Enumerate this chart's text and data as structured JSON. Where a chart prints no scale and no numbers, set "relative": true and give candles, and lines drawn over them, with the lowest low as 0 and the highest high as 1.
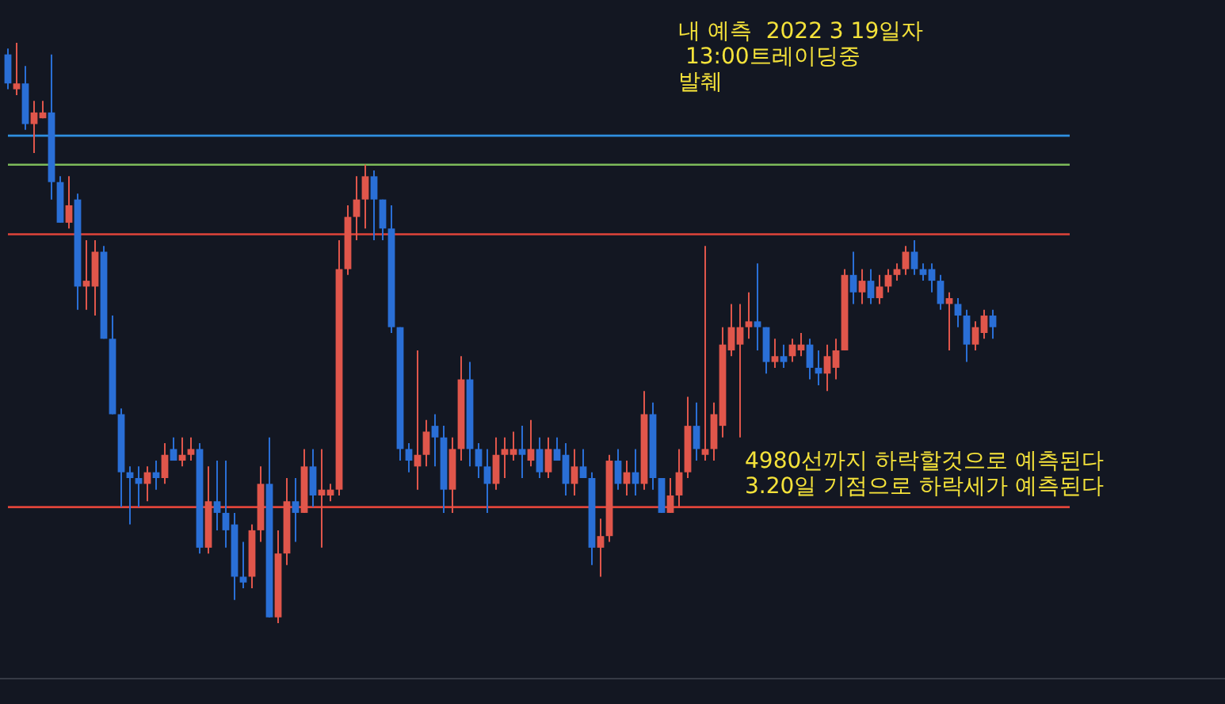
{
  "chart_data": {
    "type": "candlestick",
    "relative": true,
    "categories": [
      null,
      null,
      null,
      null,
      null,
      null,
      null,
      null,
      null,
      null,
      null,
      null,
      null,
      null,
      null,
      null,
      null,
      null,
      null,
      null,
      null,
      null,
      null,
      null,
      null,
      null,
      null,
      null,
      null,
      null,
      null,
      null,
      null,
      null,
      null,
      null,
      null,
      null,
      null,
      null,
      null,
      null,
      null,
      null,
      null,
      null,
      null,
      null,
      null,
      null,
      null,
      null,
      null,
      null,
      null,
      null,
      null,
      null,
      null,
      null,
      null,
      null,
      null,
      null,
      null,
      null,
      null,
      null,
      null,
      null,
      null,
      null,
      null,
      null,
      null,
      null,
      null,
      null,
      null,
      null,
      null,
      null,
      null,
      null,
      null,
      null,
      null,
      null,
      null,
      null,
      null,
      null,
      null,
      null,
      null,
      null,
      null,
      null,
      null,
      null,
      null,
      null,
      null,
      null,
      null,
      null,
      null,
      null,
      null,
      null,
      null,
      null,
      null,
      null
    ],
    "ohlc": [
      [
        0.98,
        0.99,
        0.92,
        0.93
      ],
      [
        0.92,
        1.0,
        0.91,
        0.93
      ],
      [
        0.93,
        0.96,
        0.85,
        0.86
      ],
      [
        0.86,
        0.9,
        0.81,
        0.88
      ],
      [
        0.87,
        0.9,
        0.87,
        0.88
      ],
      [
        0.88,
        0.98,
        0.73,
        0.76
      ],
      [
        0.76,
        0.77,
        0.69,
        0.69
      ],
      [
        0.69,
        0.77,
        0.68,
        0.72
      ],
      [
        0.73,
        0.74,
        0.54,
        0.58
      ],
      [
        0.58,
        0.66,
        0.54,
        0.59
      ],
      [
        0.58,
        0.66,
        0.53,
        0.64
      ],
      [
        0.64,
        0.65,
        0.49,
        0.49
      ],
      [
        0.49,
        0.53,
        0.36,
        0.36
      ],
      [
        0.36,
        0.37,
        0.2,
        0.26
      ],
      [
        0.26,
        0.27,
        0.17,
        0.25
      ],
      [
        0.25,
        0.27,
        0.2,
        0.24
      ],
      [
        0.24,
        0.27,
        0.21,
        0.26
      ],
      [
        0.26,
        0.28,
        0.23,
        0.25
      ],
      [
        0.25,
        0.31,
        0.24,
        0.29
      ],
      [
        0.3,
        0.32,
        0.28,
        0.28
      ],
      [
        0.28,
        0.32,
        0.27,
        0.29
      ],
      [
        0.29,
        0.32,
        0.28,
        0.3
      ],
      [
        0.3,
        0.31,
        0.12,
        0.13
      ],
      [
        0.13,
        0.27,
        0.12,
        0.21
      ],
      [
        0.21,
        0.28,
        0.16,
        0.19
      ],
      [
        0.19,
        0.28,
        0.13,
        0.16
      ],
      [
        0.17,
        0.19,
        0.04,
        0.08
      ],
      [
        0.08,
        0.14,
        0.06,
        0.07
      ],
      [
        0.08,
        0.17,
        0.06,
        0.16
      ],
      [
        0.16,
        0.27,
        0.14,
        0.24
      ],
      [
        0.24,
        0.32,
        0.01,
        0.01
      ],
      [
        0.01,
        0.16,
        0,
        0.12
      ],
      [
        0.12,
        0.25,
        0.1,
        0.21
      ],
      [
        0.21,
        0.25,
        0.14,
        0.19
      ],
      [
        0.19,
        0.3,
        0.19,
        0.27
      ],
      [
        0.27,
        0.3,
        0.2,
        0.22
      ],
      [
        0.22,
        0.3,
        0.13,
        0.23
      ],
      [
        0.22,
        0.24,
        0.21,
        0.23
      ],
      [
        0.23,
        0.66,
        0.22,
        0.61
      ],
      [
        0.61,
        0.72,
        0.6,
        0.7
      ],
      [
        0.7,
        0.77,
        0.66,
        0.73
      ],
      [
        0.73,
        0.79,
        0.68,
        0.77
      ],
      [
        0.77,
        0.78,
        0.66,
        0.73
      ],
      [
        0.73,
        0.73,
        0.66,
        0.68
      ],
      [
        0.68,
        0.72,
        0.5,
        0.51
      ],
      [
        0.51,
        0.51,
        0.28,
        0.3
      ],
      [
        0.3,
        0.31,
        0.26,
        0.28
      ],
      [
        0.27,
        0.47,
        0.23,
        0.29
      ],
      [
        0.29,
        0.35,
        0.27,
        0.33
      ],
      [
        0.34,
        0.36,
        0.27,
        0.32
      ],
      [
        0.32,
        0.34,
        0.19,
        0.23
      ],
      [
        0.23,
        0.32,
        0.19,
        0.3
      ],
      [
        0.3,
        0.46,
        0.28,
        0.42
      ],
      [
        0.42,
        0.45,
        0.27,
        0.3
      ],
      [
        0.3,
        0.31,
        0.25,
        0.27
      ],
      [
        0.27,
        0.3,
        0.19,
        0.24
      ],
      [
        0.24,
        0.32,
        0.23,
        0.29
      ],
      [
        0.29,
        0.32,
        0.25,
        0.3
      ],
      [
        0.29,
        0.33,
        0.28,
        0.3
      ],
      [
        0.3,
        0.34,
        0.25,
        0.29
      ],
      [
        0.28,
        0.35,
        0.27,
        0.3
      ],
      [
        0.3,
        0.32,
        0.25,
        0.26
      ],
      [
        0.26,
        0.32,
        0.25,
        0.3
      ],
      [
        0.3,
        0.32,
        0.28,
        0.28
      ],
      [
        0.29,
        0.31,
        0.22,
        0.24
      ],
      [
        0.24,
        0.3,
        0.22,
        0.27
      ],
      [
        0.27,
        0.3,
        0.25,
        0.25
      ],
      [
        0.25,
        0.26,
        0.1,
        0.13
      ],
      [
        0.13,
        0.18,
        0.08,
        0.15
      ],
      [
        0.15,
        0.29,
        0.14,
        0.28
      ],
      [
        0.28,
        0.3,
        0.23,
        0.24
      ],
      [
        0.24,
        0.28,
        0.22,
        0.26
      ],
      [
        0.26,
        0.3,
        0.22,
        0.24
      ],
      [
        0.24,
        0.4,
        0.23,
        0.36
      ],
      [
        0.36,
        0.38,
        0.23,
        0.25
      ],
      [
        0.25,
        0.25,
        0.19,
        0.19
      ],
      [
        0.19,
        0.25,
        0.19,
        0.22
      ],
      [
        0.22,
        0.3,
        0.2,
        0.26
      ],
      [
        0.26,
        0.39,
        0.25,
        0.34
      ],
      [
        0.34,
        0.38,
        0.28,
        0.3
      ],
      [
        0.29,
        0.65,
        0.28,
        0.3
      ],
      [
        0.3,
        0.38,
        0.28,
        0.36
      ],
      [
        0.34,
        0.51,
        0.32,
        0.48
      ],
      [
        0.47,
        0.55,
        0.46,
        0.51
      ],
      [
        0.48,
        0.55,
        0.32,
        0.51
      ],
      [
        0.51,
        0.57,
        0.49,
        0.52
      ],
      [
        0.52,
        0.62,
        0.47,
        0.51
      ],
      [
        0.51,
        0.51,
        0.43,
        0.45
      ],
      [
        0.45,
        0.49,
        0.44,
        0.46
      ],
      [
        0.46,
        0.48,
        0.44,
        0.45
      ],
      [
        0.46,
        0.49,
        0.45,
        0.48
      ],
      [
        0.47,
        0.5,
        0.46,
        0.48
      ],
      [
        0.48,
        0.49,
        0.42,
        0.44
      ],
      [
        0.44,
        0.47,
        0.41,
        0.43
      ],
      [
        0.43,
        0.48,
        0.4,
        0.46
      ],
      [
        0.44,
        0.49,
        0.42,
        0.47
      ],
      [
        0.47,
        0.61,
        0.47,
        0.6
      ],
      [
        0.6,
        0.64,
        0.55,
        0.57
      ],
      [
        0.57,
        0.61,
        0.55,
        0.59
      ],
      [
        0.59,
        0.61,
        0.55,
        0.56
      ],
      [
        0.56,
        0.6,
        0.55,
        0.58
      ],
      [
        0.58,
        0.61,
        0.57,
        0.6
      ],
      [
        0.6,
        0.62,
        0.59,
        0.61
      ],
      [
        0.61,
        0.65,
        0.6,
        0.64
      ],
      [
        0.64,
        0.66,
        0.6,
        0.61
      ],
      [
        0.61,
        0.62,
        0.59,
        0.6
      ],
      [
        0.61,
        0.62,
        0.57,
        0.59
      ],
      [
        0.59,
        0.6,
        0.54,
        0.55
      ],
      [
        0.55,
        0.57,
        0.47,
        0.56
      ],
      [
        0.55,
        0.56,
        0.51,
        0.53
      ],
      [
        0.53,
        0.54,
        0.45,
        0.48
      ],
      [
        0.48,
        0.52,
        0.47,
        0.51
      ],
      [
        0.5,
        0.54,
        0.49,
        0.53
      ],
      [
        0.53,
        0.54,
        0.49,
        0.51
      ]
    ],
    "ref_lines": [
      {
        "axis": "y",
        "value": 0.84,
        "color": "#2f8fdf"
      },
      {
        "axis": "y",
        "value": 0.79,
        "color": "#7dbb5a"
      },
      {
        "axis": "y",
        "value": 0.67,
        "color": "#e0453a"
      },
      {
        "axis": "y",
        "value": 0.2,
        "color": "#e0453a"
      }
    ],
    "annotations": [
      "내 예측  2022 3 19일자\n 13:00트레이딩중\n발췌",
      "4980선까지 하락할것으로 예측된다\n3.20일 기점으로 하락세가 예측된다"
    ]
  }
}
